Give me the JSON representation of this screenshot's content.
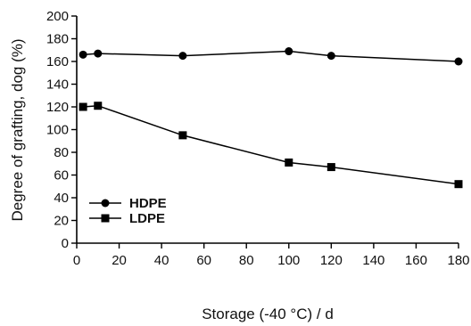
{
  "chart_data": {
    "type": "line",
    "title": "",
    "xlabel": "Storage  (-40 °C) / d",
    "ylabel": "Degree of grafting, dog  (%)",
    "xlim": [
      0,
      180
    ],
    "ylim": [
      0,
      200
    ],
    "xticks": [
      0,
      20,
      40,
      60,
      80,
      100,
      120,
      140,
      160,
      180
    ],
    "yticks": [
      0,
      20,
      40,
      60,
      80,
      100,
      120,
      140,
      160,
      180,
      200
    ],
    "grid": false,
    "legend_position": "bottom-left",
    "series": [
      {
        "name": "HDPE",
        "marker": "circle",
        "color": "#000000",
        "x": [
          3,
          10,
          50,
          100,
          120,
          180
        ],
        "y": [
          166,
          167,
          165,
          169,
          165,
          160
        ]
      },
      {
        "name": "LDPE",
        "marker": "square",
        "color": "#000000",
        "x": [
          3,
          10,
          50,
          100,
          120,
          180
        ],
        "y": [
          120,
          121,
          95,
          71,
          67,
          52
        ]
      }
    ]
  }
}
